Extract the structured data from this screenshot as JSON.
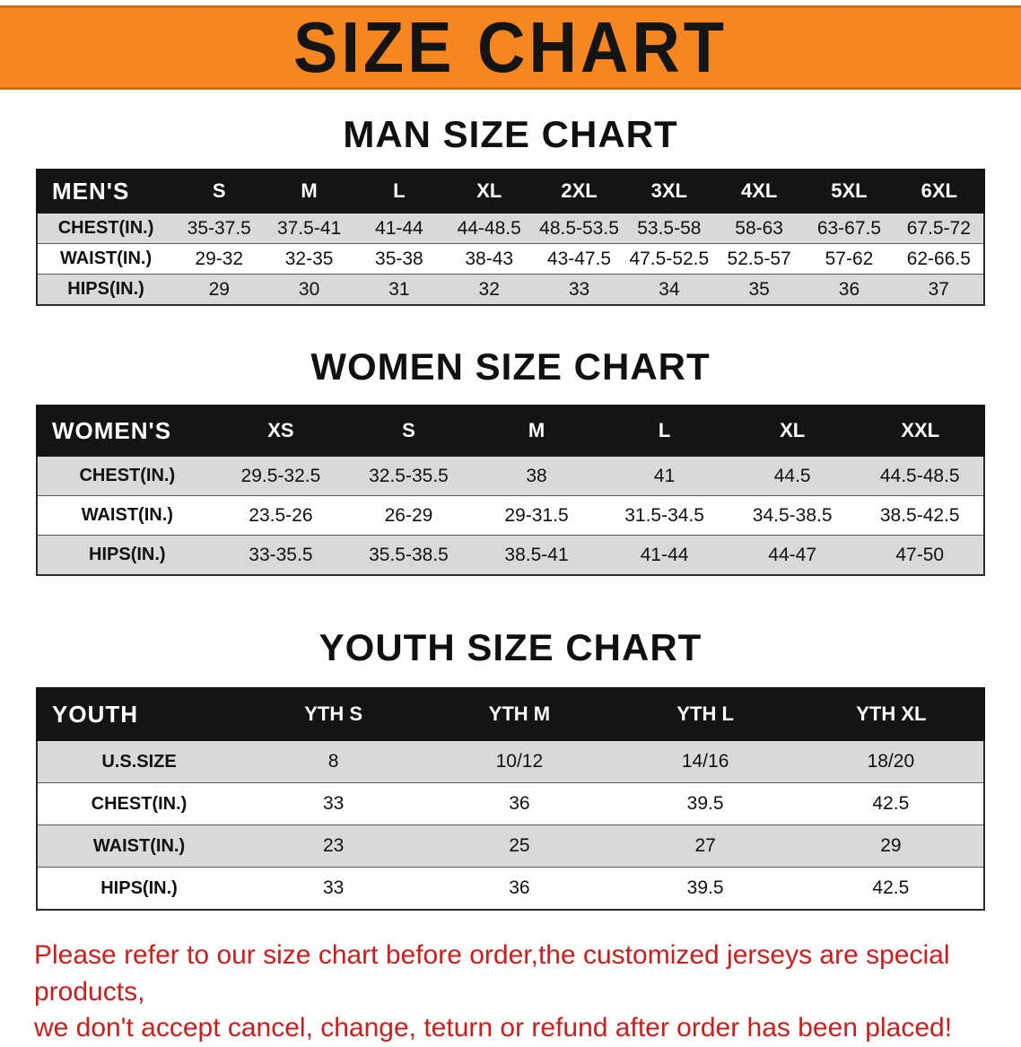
{
  "banner": {
    "title": "SIZE CHART",
    "bg_color": "#f6861f"
  },
  "sections": [
    {
      "heading": "MAN SIZE CHART",
      "table": {
        "corner": "MEN'S",
        "columns": [
          "S",
          "M",
          "L",
          "XL",
          "2XL",
          "3XL",
          "4XL",
          "5XL",
          "6XL"
        ],
        "rows": [
          {
            "label": "CHEST(IN.)",
            "values": [
              "35-37.5",
              "37.5-41",
              "41-44",
              "44-48.5",
              "48.5-53.5",
              "53.5-58",
              "58-63",
              "63-67.5",
              "67.5-72"
            ]
          },
          {
            "label": "WAIST(IN.)",
            "values": [
              "29-32",
              "32-35",
              "35-38",
              "38-43",
              "43-47.5",
              "47.5-52.5",
              "52.5-57",
              "57-62",
              "62-66.5"
            ]
          },
          {
            "label": "HIPS(IN.)",
            "values": [
              "29",
              "30",
              "31",
              "32",
              "33",
              "34",
              "35",
              "36",
              "37"
            ]
          }
        ]
      }
    },
    {
      "heading": "WOMEN SIZE CHART",
      "table": {
        "corner": "WOMEN'S",
        "columns": [
          "XS",
          "S",
          "M",
          "L",
          "XL",
          "XXL"
        ],
        "rows": [
          {
            "label": "CHEST(IN.)",
            "values": [
              "29.5-32.5",
              "32.5-35.5",
              "38",
              "41",
              "44.5",
              "44.5-48.5"
            ]
          },
          {
            "label": "WAIST(IN.)",
            "values": [
              "23.5-26",
              "26-29",
              "29-31.5",
              "31.5-34.5",
              "34.5-38.5",
              "38.5-42.5"
            ]
          },
          {
            "label": "HIPS(IN.)",
            "values": [
              "33-35.5",
              "35.5-38.5",
              "38.5-41",
              "41-44",
              "44-47",
              "47-50"
            ]
          }
        ]
      }
    },
    {
      "heading": "YOUTH SIZE CHART",
      "table": {
        "corner": "YOUTH",
        "columns": [
          "YTH S",
          "YTH M",
          "YTH L",
          "YTH XL"
        ],
        "rows": [
          {
            "label": "U.S.SIZE",
            "values": [
              "8",
              "10/12",
              "14/16",
              "18/20"
            ]
          },
          {
            "label": "CHEST(IN.)",
            "values": [
              "33",
              "36",
              "39.5",
              "42.5"
            ]
          },
          {
            "label": "WAIST(IN.)",
            "values": [
              "23",
              "25",
              "27",
              "29"
            ]
          },
          {
            "label": "HIPS(IN.)",
            "values": [
              "33",
              "36",
              "39.5",
              "42.5"
            ]
          }
        ]
      }
    }
  ],
  "footer": {
    "line1": "Please refer to our size chart before order,the customized jerseys are special products,",
    "line2": "we don't accept cancel, change, teturn or refund after order has been placed!"
  }
}
